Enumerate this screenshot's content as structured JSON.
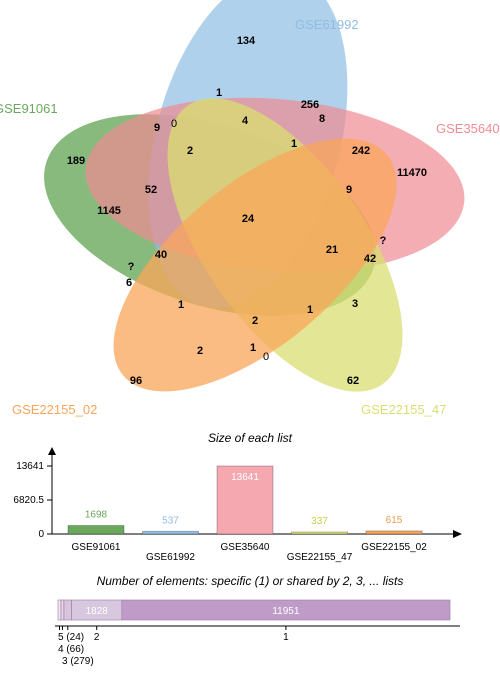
{
  "venn": {
    "sets": [
      {
        "name": "GSE91061",
        "color": "#6aa95c"
      },
      {
        "name": "GSE61992",
        "color": "#8fbde4"
      },
      {
        "name": "GSE35640",
        "color": "#ef8c93"
      },
      {
        "name": "GSE22155_47",
        "color": "#d9de74"
      },
      {
        "name": "GSE22155_02",
        "color": "#f9a55a"
      }
    ],
    "region_values": [
      "134",
      "1",
      "4",
      "256",
      "8",
      "1",
      "9",
      "0",
      "2",
      "189",
      "52",
      "1145",
      "24",
      "242",
      "11470",
      "9",
      "21",
      "42",
      "?",
      "40",
      "?",
      "6",
      "1",
      "2",
      "1",
      "3",
      "2",
      "1",
      "0",
      "96",
      "62"
    ]
  },
  "size_chart": {
    "title": "Size of each list",
    "y_ticks": [
      "13641",
      "6820.5",
      "0"
    ],
    "bars": [
      {
        "name": "GSE91061",
        "value": 1698,
        "label": "1698",
        "fill": "#6aa95c",
        "label_color": "#6aa95c"
      },
      {
        "name": "GSE61992",
        "value": 537,
        "label": "537",
        "fill": "#8fbde4",
        "label_color": "#8fbde4"
      },
      {
        "name": "GSE35640",
        "value": 13641,
        "label": "13641",
        "fill": "#f6a8b0",
        "label_color": "#ffffff"
      },
      {
        "name": "GSE22155_47",
        "value": 337,
        "label": "337",
        "fill": "#d9de74",
        "label_color": "#c9ce4a"
      },
      {
        "name": "GSE22155_02",
        "value": 615,
        "label": "615",
        "fill": "#f9a55a",
        "label_color": "#f09a4e"
      }
    ],
    "ymax": 13641
  },
  "shared_chart": {
    "title": "Number of elements: specific (1) or shared by 2, 3, ... lists",
    "segments": [
      {
        "k": "5",
        "value": 24
      },
      {
        "k": "4",
        "value": 66
      },
      {
        "k": "3",
        "value": 279
      },
      {
        "k": "2",
        "value": 1828,
        "label": "1828"
      },
      {
        "k": "1",
        "value": 11951,
        "label": "11951"
      }
    ],
    "tick_labels": [
      "5 (24)",
      "4 (66)",
      "3 (279)",
      "2",
      "1"
    ]
  }
}
